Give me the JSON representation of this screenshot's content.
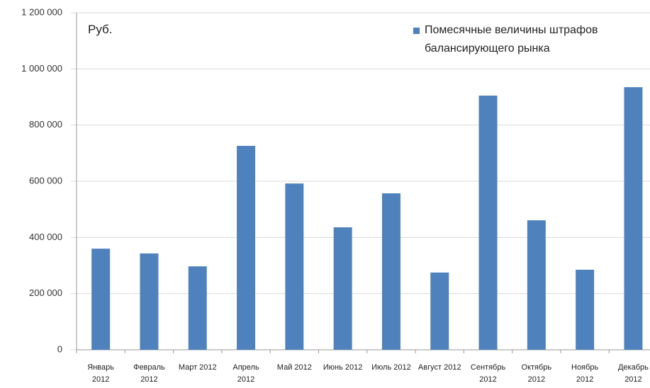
{
  "chart_data": {
    "type": "bar",
    "annotation": "Руб.",
    "categories": [
      "Январь 2012",
      "Февраль 2012",
      "Март 2012",
      "Апрель 2012",
      "Май 2012",
      "Июнь 2012",
      "Июль 2012",
      "Август 2012",
      "Сентябрь 2012",
      "Октябрь 2012",
      "Ноябрь 2012",
      "Декабрь 2012"
    ],
    "series": [
      {
        "name": "Помесячные величины штрафов балансирующего рынка",
        "color": "#4f81bd",
        "values": [
          360000,
          343000,
          297000,
          726000,
          592000,
          436000,
          557000,
          275000,
          905000,
          461000,
          285000,
          935000
        ]
      }
    ],
    "ylim": [
      0,
      1200000
    ],
    "yticks": [
      0,
      {
        "value": 200000,
        "label": "200 000"
      },
      {
        "value": 400000,
        "label": "400 000"
      },
      {
        "value": 600000,
        "label": "600 000"
      },
      {
        "value": 800000,
        "label": "800 000"
      },
      {
        "value": 1000000,
        "label": "1 000 000"
      },
      {
        "value": 1200000,
        "label": "1 200 000"
      }
    ],
    "grid": true,
    "legend": "top-right"
  }
}
